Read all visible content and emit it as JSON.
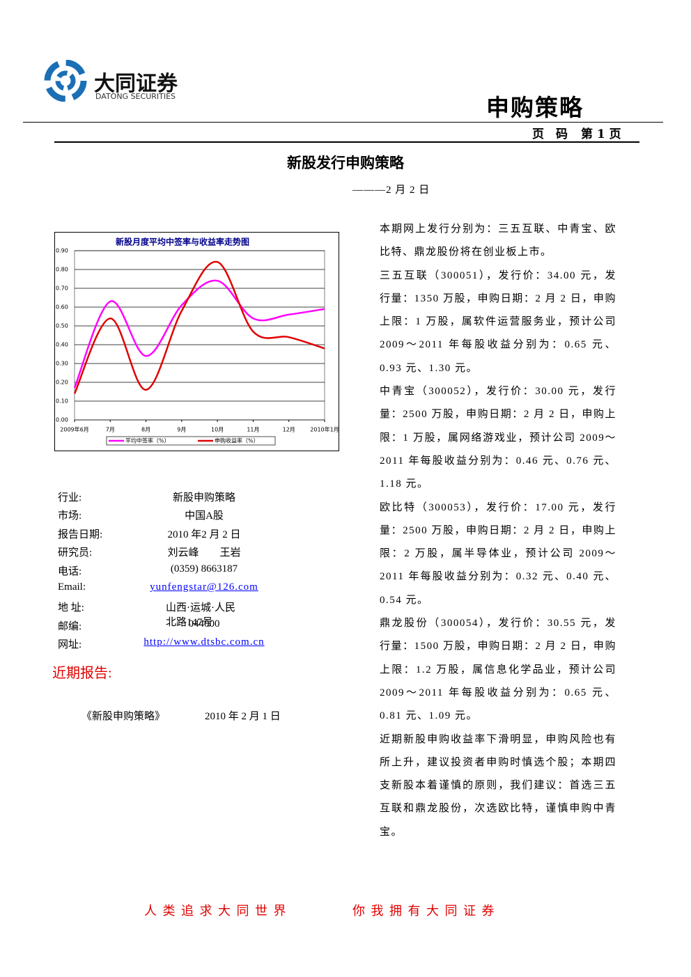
{
  "header": {
    "logo_cn": "大同证券",
    "logo_en": "DATONG SECURITIES",
    "section": "申购策略",
    "page_label": "页　码",
    "page_number": "第 1 页"
  },
  "title": "新股发行申购策略",
  "date_line": "———2 月 2 日",
  "chart_data": {
    "type": "line",
    "title": "新股月度平均中签率与收益率走势图",
    "categories": [
      "2009年6月",
      "7月",
      "8月",
      "9月",
      "10月",
      "11月",
      "12月",
      "2010年1月"
    ],
    "series": [
      {
        "name": "平均中签率（%）",
        "color": "#ff00ff",
        "values": [
          0.17,
          0.63,
          0.34,
          0.61,
          0.74,
          0.54,
          0.56,
          0.59
        ]
      },
      {
        "name": "申购收益率（%）",
        "color": "#e00000",
        "values": [
          0.14,
          0.54,
          0.16,
          0.58,
          0.84,
          0.47,
          0.44,
          0.38
        ]
      }
    ],
    "ylim": [
      0,
      0.9
    ],
    "yticks": [
      {
        "value": 0,
        "label": "0.00"
      },
      {
        "value": 0.1,
        "label": "0.10"
      },
      {
        "value": 0.2,
        "label": "0.20"
      },
      {
        "value": 0.3,
        "label": "0.30"
      },
      {
        "value": 0.4,
        "label": "0.40"
      },
      {
        "value": 0.5,
        "label": "0.50"
      },
      {
        "value": 0.6,
        "label": "0.60"
      },
      {
        "value": 0.7,
        "label": "0.70"
      },
      {
        "value": 0.8,
        "label": "0.80"
      },
      {
        "value": 0.9,
        "label": "0.90"
      }
    ],
    "grid": true,
    "smooth": true,
    "legend": "bottom"
  },
  "info": [
    {
      "label": "行业:",
      "value": "新股申购策略"
    },
    {
      "label": "市场:",
      "value": "中国A股"
    },
    {
      "label": "报告日期:",
      "value": "2010 年2 月 2 日"
    },
    {
      "label": "研究员:",
      "value": "刘云峰　　王岩"
    },
    {
      "label": "电话:",
      "value": "(0359) 8663187"
    },
    {
      "label": "Email:",
      "value": "yunfengstar@126.com"
    },
    {
      "label": "地 址:",
      "value": "山西·运城·人民北路147号"
    },
    {
      "label": "邮编:",
      "value": "044000"
    },
    {
      "label": "网址:",
      "value": "http://www.dtsbc.com.cn"
    }
  ],
  "recent_reports_title": "近期报告:",
  "recent_reports": [
    {
      "title": "《新股申购策略》",
      "date": "2010 年 2 月 1 日"
    }
  ],
  "paragraphs": [
    "本期网上发行分别为：三五互联、中青宝、欧比特、鼎龙股份将在创业板上市。",
    "三五互联（300051），发行价：34.00 元，发行量：1350 万股，申购日期：2 月 2 日，申购上限：1 万股，属软件运营服务业，预计公司 2009～2011 年每股收益分别为：0.65 元、0.93 元、1.30 元。",
    "中青宝（300052），发行价：30.00 元，发行量：2500 万股，申购日期：2 月 2 日，申购上限：1 万股，属网络游戏业，预计公司 2009～2011 年每股收益分别为：0.46 元、0.76 元、1.18 元。",
    "欧比特（300053），发行价：17.00 元，发行量：2500 万股，申购日期：2 月 2 日，申购上限：2 万股，属半导体业，预计公司 2009～2011 年每股收益分别为：0.32 元、0.40 元、0.54 元。",
    "鼎龙股份（300054），发行价：30.55 元，发行量：1500 万股，申购日期：2 月 2 日，申购上限：1.2 万股，属信息化学品业，预计公司 2009～2011 年每股收益分别为：0.65 元、0.81 元、1.09 元。",
    "近期新股申购收益率下滑明显，申购风险也有所上升，建议投资者申购时慎选个股；本期四支新股本着谨慎的原则，我们建议：首选三五互联和鼎龙股份，次选欧比特，谨慎申购中青宝。"
  ],
  "footer": [
    "人 类 追 求 大 同 世 界",
    "你 我 拥 有 大 同 证 券"
  ]
}
